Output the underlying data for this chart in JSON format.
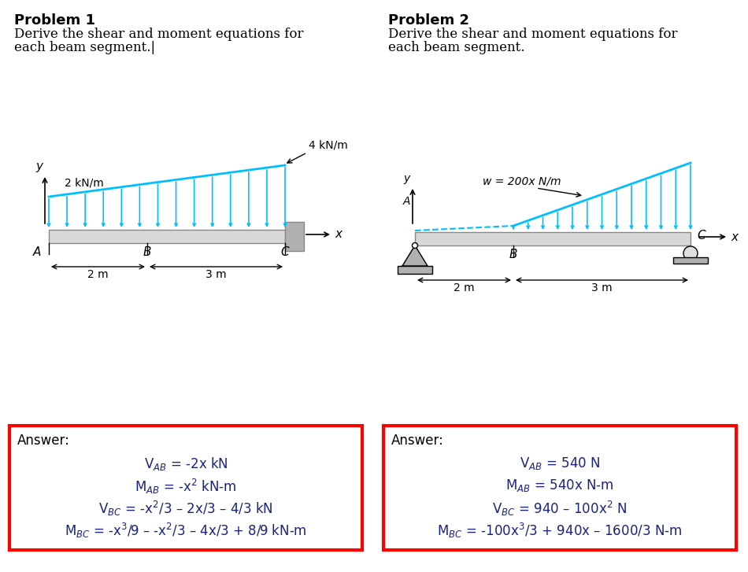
{
  "bg_color": "#ffffff",
  "load_color": "#00bfff",
  "beam_color": "#d8d8d8",
  "wall_color": "#b0b0b0",
  "text_color": "#1a237e",
  "box_color": "#ff0000",
  "title_color": "#000000",
  "prob1": {
    "title": "Problem 1",
    "desc1": "Derive the shear and moment equations for",
    "desc2": "each beam segment.|",
    "label_load_left": "2 kN/m",
    "label_load_right": "4 kN/m",
    "label_A": "A",
    "label_B": "B",
    "label_C": "C",
    "label_2m": "2 m",
    "label_3m": "3 m",
    "answer_lines": [
      "V$_{AB}$ = -2x kN",
      "M$_{AB}$ = -x$^{2}$ kN-m",
      "V$_{BC}$ = -x$^{2}$/3 – 2x/3 – 4/3 kN",
      "M$_{BC}$ = -x$^{3}$/9 – -x$^{2}$/3 – 4x/3 + 8/9 kN-m"
    ]
  },
  "prob2": {
    "title": "Problem 2",
    "desc1": "Derive the shear and moment equations for",
    "desc2": "each beam segment.",
    "label_load": "w = 200x N/m",
    "label_A": "A",
    "label_B": "B",
    "label_C": "C",
    "label_2m": "2 m",
    "label_3m": "3 m",
    "answer_lines": [
      "V$_{AB}$ = 540 N",
      "M$_{AB}$ = 540x N-m",
      "V$_{BC}$ = 940 – 100x$^{2}$ N",
      "M$_{BC}$ = -100x$^{3}$/3 + 940x – 1600/3 N-m"
    ]
  },
  "answer_label": "Answer:"
}
